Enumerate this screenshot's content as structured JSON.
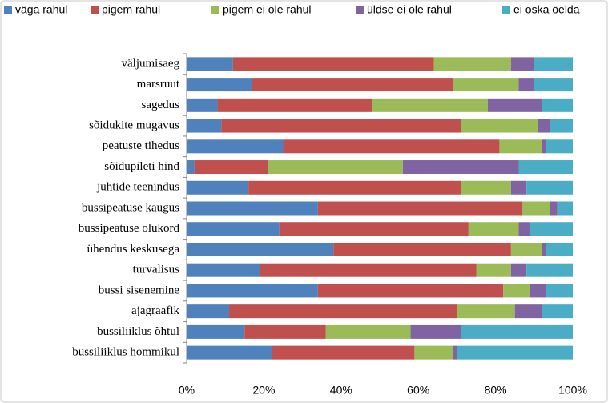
{
  "chart_data": {
    "type": "stacked-bar-horizontal",
    "categories": [
      "väljumisaeg",
      "marsruut",
      "sagedus",
      "sõidukite mugavus",
      "peatuste tihedus",
      "sõidupileti hind",
      "juhtide teenindus",
      "bussipeatuse kaugus",
      "bussipeatuse olukord",
      "ühendus keskusega",
      "turvalisus",
      "bussi sisenemine",
      "ajagraafik",
      "bussiliiklus õhtul",
      "bussiliiklus hommikul"
    ],
    "series": [
      {
        "name": "väga rahul",
        "color": "#4f81bd",
        "values": [
          12,
          17,
          8,
          9,
          25,
          2,
          16,
          34,
          24,
          38,
          19,
          34,
          11,
          15,
          22
        ]
      },
      {
        "name": "pigem rahul",
        "color": "#c0504d",
        "values": [
          52,
          52,
          40,
          62,
          56,
          19,
          55,
          53,
          49,
          46,
          56,
          48,
          59,
          21,
          37
        ]
      },
      {
        "name": "pigem ei ole rahul",
        "color": "#9bbb59",
        "values": [
          20,
          17,
          30,
          20,
          11,
          35,
          13,
          7,
          13,
          8,
          9,
          7,
          15,
          22,
          10
        ]
      },
      {
        "name": "üldse ei ole rahul",
        "color": "#8064a2",
        "values": [
          6,
          4,
          14,
          3,
          1,
          30,
          4,
          2,
          3,
          1,
          4,
          4,
          7,
          13,
          1
        ]
      },
      {
        "name": "ei oska öelda",
        "color": "#4bacc6",
        "values": [
          10,
          10,
          8,
          6,
          7,
          14,
          12,
          4,
          11,
          7,
          12,
          7,
          8,
          29,
          30
        ]
      }
    ],
    "xlim": [
      0,
      100
    ],
    "xticks": [
      {
        "value": 0,
        "label": "0%"
      },
      {
        "value": 20,
        "label": "20%"
      },
      {
        "value": 40,
        "label": "40%"
      },
      {
        "value": 60,
        "label": "60%"
      },
      {
        "value": 80,
        "label": "80%"
      },
      {
        "value": 100,
        "label": "100%"
      }
    ],
    "grid": false,
    "legend": "top"
  }
}
